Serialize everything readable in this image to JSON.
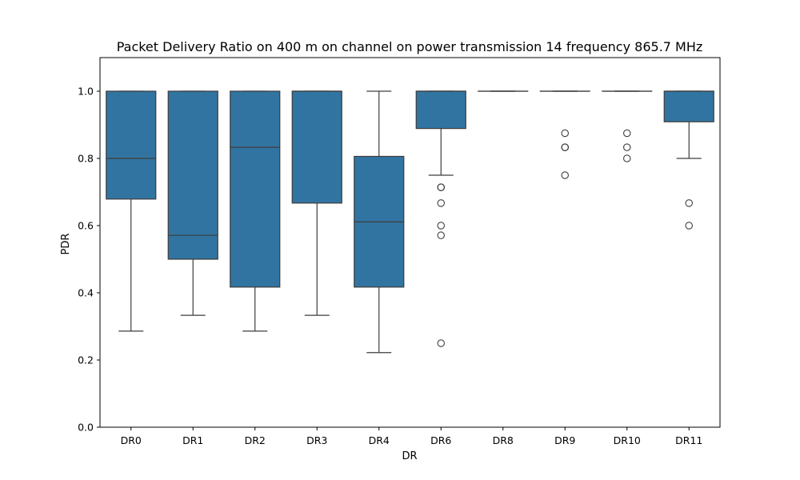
{
  "chart_data": {
    "type": "box",
    "title": "Packet Delivery Ratio on 400 m on channel on power transmission 14 frequency 865.7 MHz",
    "xlabel": "DR",
    "ylabel": "PDR",
    "ylim": [
      0.0,
      1.1
    ],
    "yticks": [
      "0.0",
      "0.2",
      "0.4",
      "0.6",
      "0.8",
      "1.0"
    ],
    "grid": false,
    "box_color": "#3274a1",
    "line_color": "#3d3d3d",
    "categories": [
      "DR0",
      "DR1",
      "DR2",
      "DR3",
      "DR4",
      "DR6",
      "DR8",
      "DR9",
      "DR10",
      "DR11"
    ],
    "boxes": [
      {
        "category": "DR0",
        "whisker_low": 0.286,
        "q1": 0.679,
        "median": 0.8,
        "q3": 1.0,
        "whisker_high": 1.0,
        "outliers": []
      },
      {
        "category": "DR1",
        "whisker_low": 0.333,
        "q1": 0.5,
        "median": 0.571,
        "q3": 1.0,
        "whisker_high": 1.0,
        "outliers": []
      },
      {
        "category": "DR2",
        "whisker_low": 0.286,
        "q1": 0.417,
        "median": 0.833,
        "q3": 1.0,
        "whisker_high": 1.0,
        "outliers": []
      },
      {
        "category": "DR3",
        "whisker_low": 0.333,
        "q1": 0.667,
        "median": 1.0,
        "q3": 1.0,
        "whisker_high": 1.0,
        "outliers": []
      },
      {
        "category": "DR4",
        "whisker_low": 0.222,
        "q1": 0.417,
        "median": 0.611,
        "q3": 0.806,
        "whisker_high": 1.0,
        "outliers": []
      },
      {
        "category": "DR6",
        "whisker_low": 0.75,
        "q1": 0.889,
        "median": 1.0,
        "q3": 1.0,
        "whisker_high": 1.0,
        "outliers": [
          0.714,
          0.714,
          0.667,
          0.6,
          0.571,
          0.25
        ]
      },
      {
        "category": "DR8",
        "whisker_low": 1.0,
        "q1": 1.0,
        "median": 1.0,
        "q3": 1.0,
        "whisker_high": 1.0,
        "outliers": []
      },
      {
        "category": "DR9",
        "whisker_low": 1.0,
        "q1": 1.0,
        "median": 1.0,
        "q3": 1.0,
        "whisker_high": 1.0,
        "outliers": [
          0.875,
          0.833,
          0.833,
          0.75
        ]
      },
      {
        "category": "DR10",
        "whisker_low": 1.0,
        "q1": 1.0,
        "median": 1.0,
        "q3": 1.0,
        "whisker_high": 1.0,
        "outliers": [
          0.875,
          0.833,
          0.8
        ]
      },
      {
        "category": "DR11",
        "whisker_low": 0.8,
        "q1": 0.909,
        "median": 1.0,
        "q3": 1.0,
        "whisker_high": 1.0,
        "outliers": [
          0.667,
          0.6
        ]
      }
    ]
  }
}
